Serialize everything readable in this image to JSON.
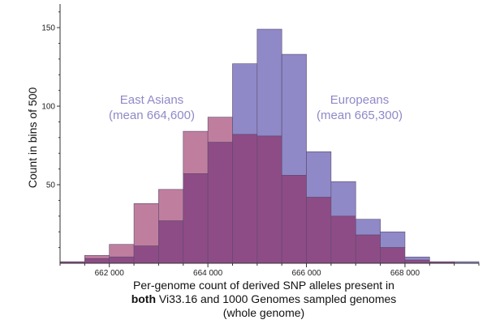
{
  "chart_data": {
    "type": "bar",
    "overlay": true,
    "bin_width": 500,
    "bin_starts": [
      661000,
      661500,
      662000,
      662500,
      663000,
      663500,
      664000,
      664500,
      665000,
      665500,
      666000,
      666500,
      667000,
      667500,
      668000,
      668500,
      669000
    ],
    "series": [
      {
        "values": [
          1,
          5,
          12,
          38,
          47,
          84,
          93,
          82,
          81,
          56,
          42,
          30,
          18,
          10,
          2,
          1,
          0
        ],
        "color": "#c07e9f"
      },
      {
        "values": [
          1,
          3,
          4,
          11,
          27,
          57,
          77,
          127,
          149,
          133,
          71,
          52,
          28,
          20,
          4,
          1,
          1
        ],
        "color": "#8f89c8"
      }
    ],
    "overlap_color": "#8e4c86",
    "annotations": [
      {
        "line1": "East Asians",
        "line2": "(mean 664,600)",
        "color": "#8f89c8"
      },
      {
        "line1": "Europeans",
        "line2": "(mean 665,300)",
        "color": "#8f89c8"
      }
    ],
    "ylabel": "Count in bins of 500",
    "xlabel_line1": "Per-genome count of derived SNP alleles present in",
    "xlabel_bold": "both",
    "xlabel_line2_rest": " Vi33.16 and 1000 Genomes sampled genomes",
    "xlabel_line3": "(whole genome)",
    "xticks": [
      662000,
      664000,
      666000,
      668000
    ],
    "xtick_labels": [
      "662 000",
      "664 000",
      "666 000",
      "668 000"
    ],
    "yticks": [
      50,
      100,
      150
    ],
    "xlim": [
      661000,
      669500
    ],
    "ylim": [
      0,
      165
    ]
  }
}
